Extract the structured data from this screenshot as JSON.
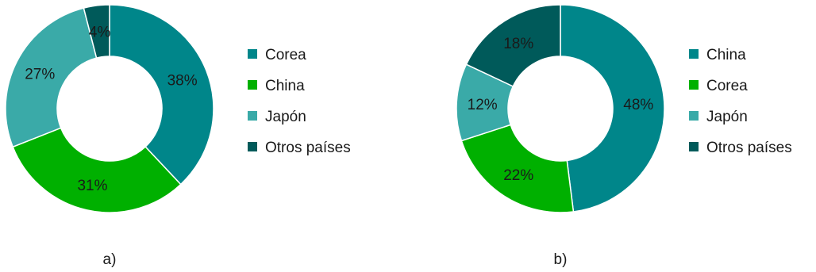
{
  "colors": {
    "teal": "#00868a",
    "green": "#00b000",
    "light_teal": "#3aaaa8",
    "dark_teal": "#005a5a"
  },
  "chart_data": [
    {
      "type": "pie",
      "panel_label": "a)",
      "slices": [
        {
          "label": "Corea",
          "value": 38,
          "text": "38%",
          "color": "#00868a"
        },
        {
          "label": "China",
          "value": 31,
          "text": "31%",
          "color": "#00b000"
        },
        {
          "label": "Japón",
          "value": 27,
          "text": "27%",
          "color": "#3aaaa8"
        },
        {
          "label": "Otros países",
          "value": 4,
          "text": "4%",
          "color": "#005a5a"
        }
      ],
      "legend": [
        "Corea",
        "China",
        "Japón",
        "Otros países"
      ],
      "legend_placement": "right"
    },
    {
      "type": "pie",
      "panel_label": "b)",
      "slices": [
        {
          "label": "China",
          "value": 48,
          "text": "48%",
          "color": "#00868a"
        },
        {
          "label": "Corea",
          "value": 22,
          "text": "22%",
          "color": "#00b000"
        },
        {
          "label": "Japón",
          "value": 12,
          "text": "12%",
          "color": "#3aaaa8"
        },
        {
          "label": "Otros países",
          "value": 18,
          "text": "18%",
          "color": "#005a5a"
        }
      ],
      "legend": [
        "China",
        "Corea",
        "Japón",
        "Otros países"
      ],
      "legend_placement": "right"
    }
  ]
}
